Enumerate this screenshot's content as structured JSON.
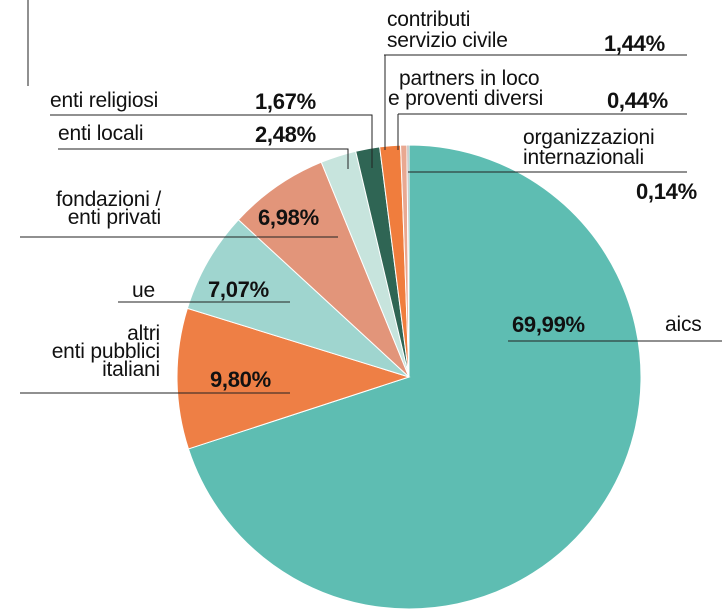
{
  "chart_data": {
    "type": "pie",
    "slices": [
      {
        "label": "aics",
        "value_text": "69,99%",
        "value": 69.99,
        "color": "#5ebdb2"
      },
      {
        "label": "altri enti pubblici italiani",
        "value_text": "9,80%",
        "value": 9.8,
        "color": "#ee7f45"
      },
      {
        "label": "ue",
        "value_text": "7,07%",
        "value": 7.07,
        "color": "#9fd5cf"
      },
      {
        "label": "fondazioni / enti privati",
        "value_text": "6,98%",
        "value": 6.98,
        "color": "#e2957a"
      },
      {
        "label": "enti locali",
        "value_text": "2,48%",
        "value": 2.48,
        "color": "#c7e4dd"
      },
      {
        "label": "enti religiosi",
        "value_text": "1,67%",
        "value": 1.67,
        "color": "#2f6554"
      },
      {
        "label": "contributi servizio civile",
        "value_text": "1,44%",
        "value": 1.44,
        "color": "#f07d3d"
      },
      {
        "label": "partners in loco e proventi diversi",
        "value_text": "0,44%",
        "value": 0.44,
        "color": "#e9a891"
      },
      {
        "label": "organizzazioni internazionali",
        "value_text": "0,14%",
        "value": 0.14,
        "color": "#9e9e9e"
      }
    ]
  },
  "labels": {
    "aics": "aics",
    "altri_line1": "altri",
    "altri_line2": "enti pubblici",
    "altri_line3": "italiani",
    "ue": "ue",
    "fondazioni_line1": "fondazioni /",
    "fondazioni_line2": "enti privati",
    "enti_locali": "enti locali",
    "enti_religiosi": "enti religiosi",
    "contributi_line1": "contributi",
    "contributi_line2": "servizio civile",
    "partners_line1": "partners in loco",
    "partners_line2": "e proventi diversi",
    "organizzazioni_line1": "organizzazioni",
    "organizzazioni_line2": "internazionali"
  }
}
